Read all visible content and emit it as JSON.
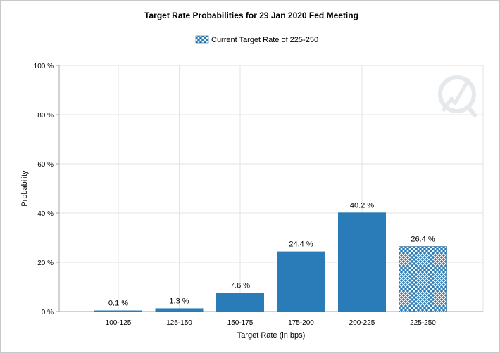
{
  "chart_data": {
    "type": "bar",
    "title": "Target Rate Probabilities for 29 Jan 2020 Fed Meeting",
    "legend": {
      "label": "Current Target Rate of 225-250",
      "placement": "top-center"
    },
    "categories": [
      "100-125",
      "125-150",
      "150-175",
      "175-200",
      "200-225",
      "225-250"
    ],
    "values": [
      0.1,
      1.3,
      7.6,
      24.4,
      40.2,
      26.4
    ],
    "data_labels": [
      "0.1 %",
      "1.3 %",
      "7.6 %",
      "24.4 %",
      "40.2 %",
      "26.4 %"
    ],
    "highlighted_category": "225-250",
    "xlabel": "Target Rate (in bps)",
    "ylabel": "Probability",
    "ylim": [
      0,
      100
    ],
    "yticks": [
      0,
      20,
      40,
      60,
      80,
      100
    ],
    "ytick_labels": [
      "0 %",
      "20 %",
      "40 %",
      "60 %",
      "80 %",
      "100 %"
    ],
    "grid": true,
    "colors": {
      "bar": "#2a7cb8",
      "grid": "#e3e3e3",
      "axis": "#a6a6a6"
    }
  }
}
